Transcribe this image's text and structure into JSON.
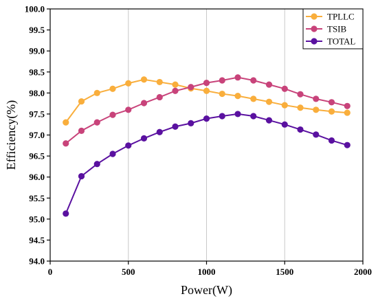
{
  "chart_data": {
    "type": "line",
    "xlabel": "Power(W)",
    "ylabel": "Efficiency(%)",
    "xlim": [
      0,
      2000
    ],
    "ylim": [
      94.0,
      100.0
    ],
    "xticks": [
      "0",
      "500",
      "1000",
      "1500",
      "2000"
    ],
    "yticks": [
      "94.0",
      "94.5",
      "95.0",
      "95.5",
      "96.0",
      "96.5",
      "97.0",
      "97.5",
      "98.0",
      "98.5",
      "99.0",
      "99.5",
      "100.0"
    ],
    "grid": "vertical",
    "legend_position": "top-right",
    "x": [
      100,
      200,
      300,
      400,
      500,
      600,
      700,
      800,
      900,
      1000,
      1100,
      1200,
      1300,
      1400,
      1500,
      1600,
      1700,
      1800,
      1900
    ],
    "series": [
      {
        "name": "TPLLC",
        "color": "#F9AE3C",
        "values": [
          97.3,
          97.8,
          98.0,
          98.1,
          98.23,
          98.32,
          98.26,
          98.2,
          98.11,
          98.05,
          97.98,
          97.93,
          97.86,
          97.79,
          97.71,
          97.65,
          97.6,
          97.56,
          97.53
        ]
      },
      {
        "name": "TSIB",
        "color": "#C8437A",
        "values": [
          96.8,
          97.1,
          97.3,
          97.48,
          97.6,
          97.76,
          97.9,
          98.05,
          98.14,
          98.24,
          98.3,
          98.37,
          98.3,
          98.2,
          98.1,
          97.97,
          97.86,
          97.78,
          97.69
        ]
      },
      {
        "name": "TOTAL",
        "color": "#5A11A0",
        "values": [
          95.13,
          96.02,
          96.31,
          96.55,
          96.75,
          96.92,
          97.07,
          97.2,
          97.28,
          97.39,
          97.45,
          97.5,
          97.45,
          97.35,
          97.25,
          97.13,
          97.01,
          96.87,
          96.76
        ]
      }
    ]
  }
}
